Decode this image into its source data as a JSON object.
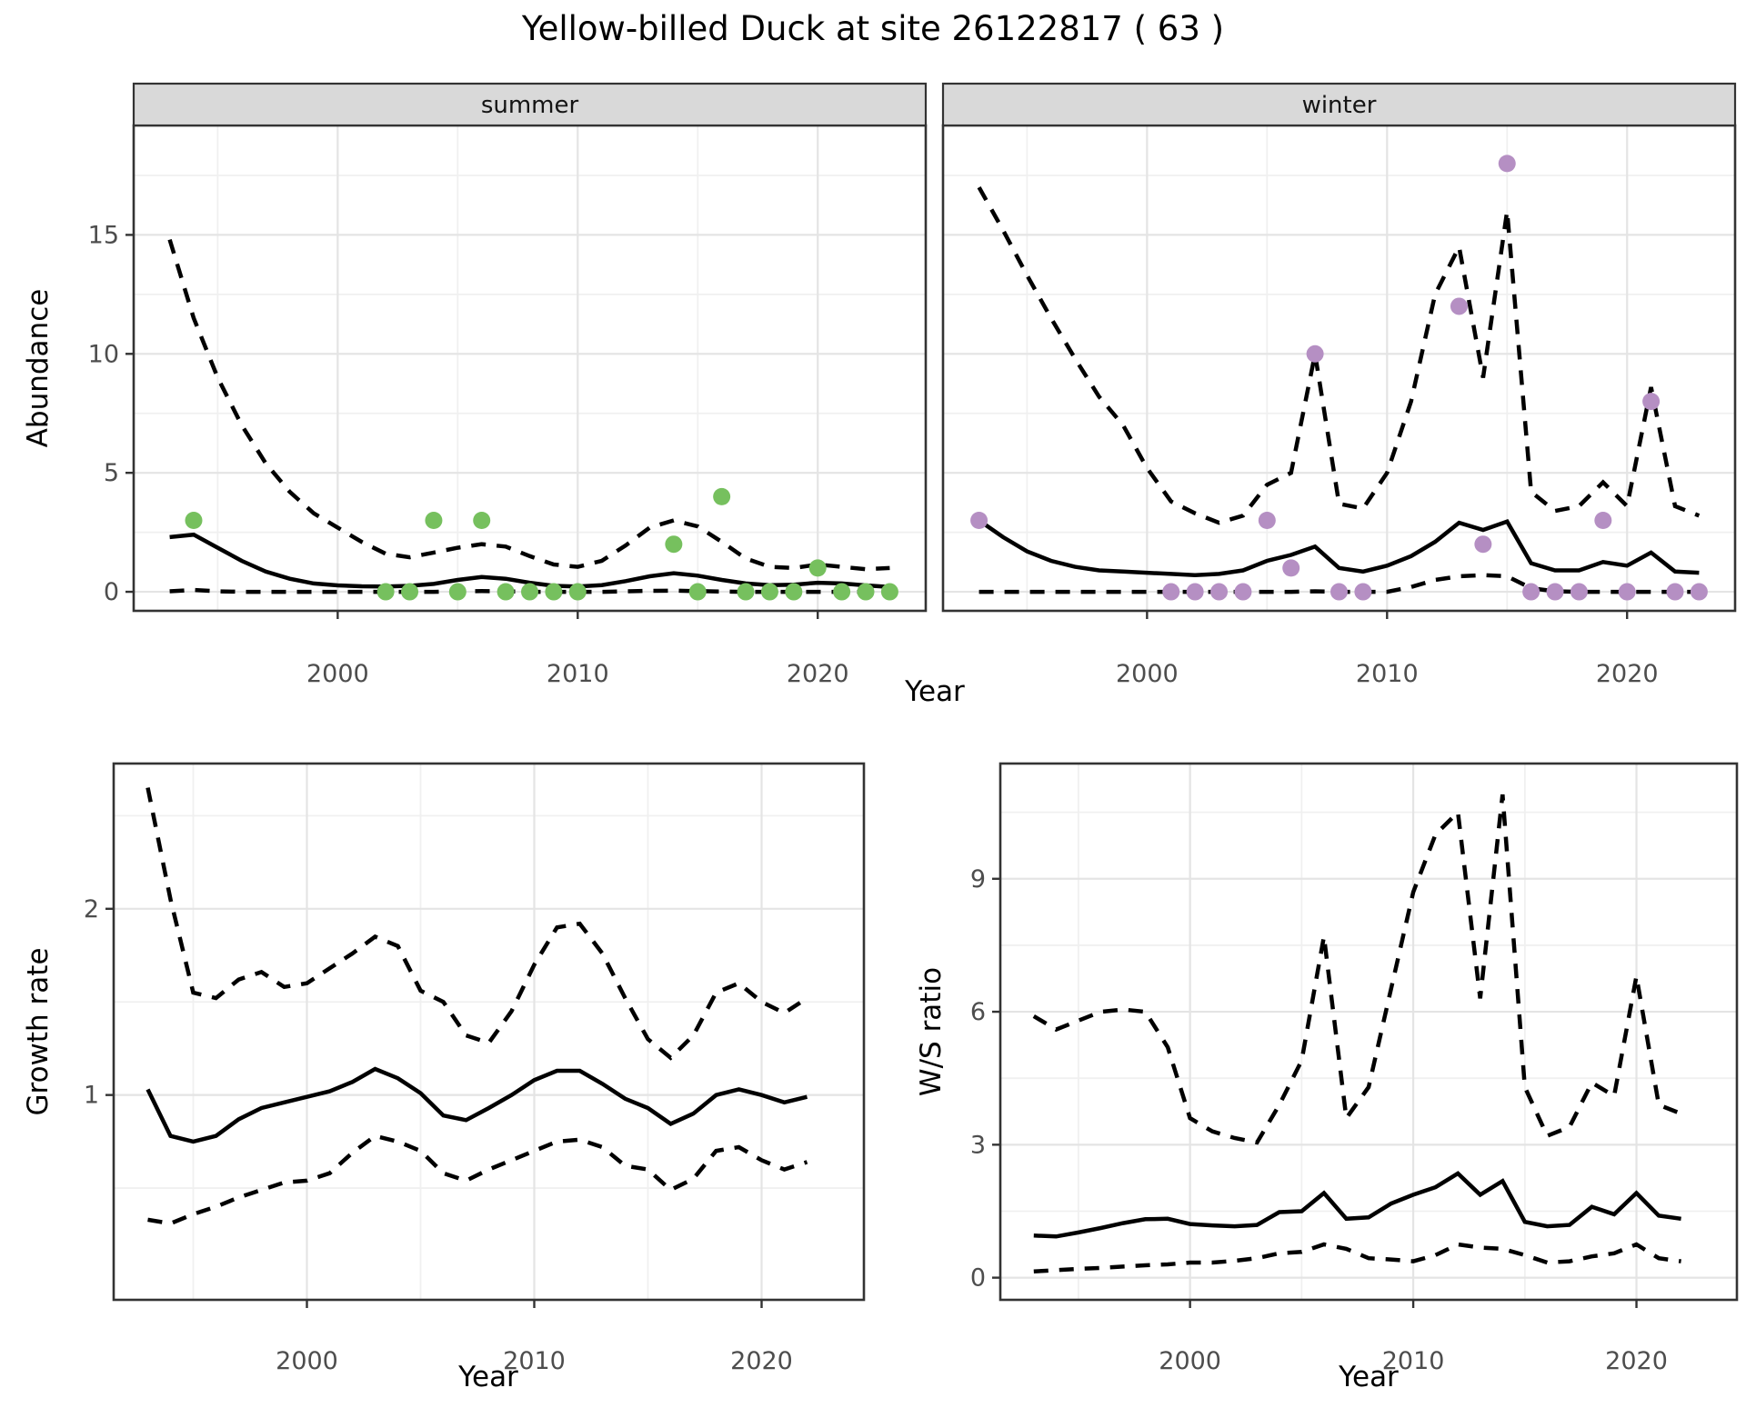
{
  "title": "Yellow-billed Duck at site 26122817 ( 63 )",
  "axes": {
    "x_label": "Year",
    "abundance_label": "Abundance",
    "growth_label": "Growth rate",
    "ws_label": "W/S ratio"
  },
  "facets": {
    "summer": "summer",
    "winter": "winter"
  },
  "colors": {
    "summer_point": "#76c05e",
    "winter_point": "#b58fc3",
    "line": "#000000",
    "strip_bg": "#d9d9d9",
    "strip_border": "#333333",
    "panel_border": "#333333",
    "grid_major": "#e4e4e4",
    "grid_minor": "#f0f0f0",
    "tick_text": "#4d4d4d",
    "tick_mark": "#333333"
  },
  "chart_data": [
    {
      "id": "abundance-summer",
      "type": "line",
      "facet_label": "summer",
      "xlabel": "Year",
      "ylabel": "Abundance",
      "xlim": [
        1991.5,
        2024.5
      ],
      "ylim": [
        -0.8,
        19.6
      ],
      "xticks": [
        2000,
        2010,
        2020
      ],
      "xminor": [
        1995,
        2005,
        2015
      ],
      "yticks": [
        0,
        5,
        10,
        15
      ],
      "yminor": [
        2.5,
        7.5,
        12.5,
        17.5
      ],
      "show_y_labels": true,
      "legend_position": "none",
      "grid": true,
      "years": [
        1993,
        1994,
        1995,
        1996,
        1997,
        1998,
        1999,
        2000,
        2001,
        2002,
        2003,
        2004,
        2005,
        2006,
        2007,
        2008,
        2009,
        2010,
        2011,
        2012,
        2013,
        2014,
        2015,
        2016,
        2017,
        2018,
        2019,
        2020,
        2021,
        2022,
        2023
      ],
      "series": [
        {
          "name": "mean",
          "style": "solid",
          "values": [
            2.3,
            2.4,
            1.85,
            1.3,
            0.85,
            0.55,
            0.35,
            0.27,
            0.23,
            0.22,
            0.25,
            0.33,
            0.5,
            0.62,
            0.55,
            0.38,
            0.25,
            0.22,
            0.28,
            0.45,
            0.65,
            0.78,
            0.68,
            0.5,
            0.35,
            0.28,
            0.3,
            0.38,
            0.35,
            0.27,
            0.2
          ]
        },
        {
          "name": "upper_ci",
          "style": "dashed",
          "values": [
            14.8,
            11.5,
            9.0,
            7.0,
            5.4,
            4.2,
            3.3,
            2.7,
            2.1,
            1.6,
            1.45,
            1.65,
            1.85,
            2.0,
            1.9,
            1.5,
            1.15,
            1.05,
            1.3,
            1.95,
            2.7,
            3.0,
            2.75,
            2.1,
            1.4,
            1.05,
            1.0,
            1.15,
            1.05,
            0.95,
            1.0
          ]
        },
        {
          "name": "lower_ci",
          "style": "dashed",
          "values": [
            0.02,
            0.08,
            0.02,
            0,
            0,
            0,
            0,
            0,
            0,
            0,
            0,
            0,
            0.02,
            0.03,
            0.02,
            0,
            0,
            0,
            0,
            0.02,
            0.04,
            0.05,
            0.03,
            0.01,
            0,
            0,
            0,
            0,
            0,
            0,
            0
          ]
        }
      ],
      "points": {
        "color_key": "summer_point",
        "data": [
          [
            1994,
            3
          ],
          [
            2002,
            0
          ],
          [
            2003,
            0
          ],
          [
            2004,
            3
          ],
          [
            2005,
            0
          ],
          [
            2006,
            3
          ],
          [
            2007,
            0
          ],
          [
            2008,
            0
          ],
          [
            2009,
            0
          ],
          [
            2010,
            0
          ],
          [
            2014,
            2
          ],
          [
            2015,
            0
          ],
          [
            2016,
            4
          ],
          [
            2017,
            0
          ],
          [
            2018,
            0
          ],
          [
            2019,
            0
          ],
          [
            2020,
            1
          ],
          [
            2021,
            0
          ],
          [
            2022,
            0
          ],
          [
            2023,
            0
          ]
        ]
      }
    },
    {
      "id": "abundance-winter",
      "type": "line",
      "facet_label": "winter",
      "xlabel": "Year",
      "ylabel": "Abundance",
      "xlim": [
        1991.5,
        2024.5
      ],
      "ylim": [
        -0.8,
        19.6
      ],
      "xticks": [
        2000,
        2010,
        2020
      ],
      "xminor": [
        1995,
        2005,
        2015
      ],
      "yticks": [
        0,
        5,
        10,
        15
      ],
      "yminor": [
        2.5,
        7.5,
        12.5,
        17.5
      ],
      "show_y_labels": false,
      "legend_position": "none",
      "grid": true,
      "years": [
        1993,
        1994,
        1995,
        1996,
        1997,
        1998,
        1999,
        2000,
        2001,
        2002,
        2003,
        2004,
        2005,
        2006,
        2007,
        2008,
        2009,
        2010,
        2011,
        2012,
        2013,
        2014,
        2015,
        2016,
        2017,
        2018,
        2019,
        2020,
        2021,
        2022,
        2023
      ],
      "series": [
        {
          "name": "mean",
          "style": "solid",
          "values": [
            3.0,
            2.3,
            1.7,
            1.3,
            1.05,
            0.9,
            0.85,
            0.8,
            0.75,
            0.7,
            0.75,
            0.9,
            1.3,
            1.55,
            1.9,
            1.0,
            0.85,
            1.1,
            1.5,
            2.1,
            2.9,
            2.6,
            2.95,
            1.2,
            0.9,
            0.9,
            1.25,
            1.1,
            1.65,
            0.85,
            0.8
          ]
        },
        {
          "name": "upper_ci",
          "style": "dashed",
          "values": [
            17.0,
            15.2,
            13.3,
            11.5,
            9.8,
            8.2,
            7.0,
            5.2,
            3.8,
            3.3,
            2.9,
            3.2,
            4.5,
            5.0,
            10.0,
            3.7,
            3.5,
            5.0,
            8.0,
            12.5,
            14.5,
            9.0,
            16.0,
            4.2,
            3.4,
            3.6,
            4.6,
            3.6,
            8.6,
            3.6,
            3.2
          ]
        },
        {
          "name": "lower_ci",
          "style": "dashed",
          "values": [
            0,
            0,
            0,
            0,
            0,
            0,
            0,
            0,
            0,
            0,
            0,
            0,
            0,
            0,
            0.02,
            0,
            0,
            0,
            0.2,
            0.5,
            0.65,
            0.7,
            0.65,
            0.15,
            0.02,
            0,
            0,
            0,
            0,
            0,
            0
          ]
        }
      ],
      "points": {
        "color_key": "winter_point",
        "data": [
          [
            1993,
            3
          ],
          [
            2001,
            0
          ],
          [
            2002,
            0
          ],
          [
            2003,
            0
          ],
          [
            2004,
            0
          ],
          [
            2005,
            3
          ],
          [
            2006,
            1
          ],
          [
            2007,
            10
          ],
          [
            2008,
            0
          ],
          [
            2009,
            0
          ],
          [
            2013,
            12
          ],
          [
            2014,
            2
          ],
          [
            2015,
            18
          ],
          [
            2016,
            0
          ],
          [
            2017,
            0
          ],
          [
            2018,
            0
          ],
          [
            2019,
            3
          ],
          [
            2020,
            0
          ],
          [
            2021,
            8
          ],
          [
            2022,
            0
          ],
          [
            2023,
            0
          ]
        ]
      }
    },
    {
      "id": "growth-rate",
      "type": "line",
      "facet_label": null,
      "xlabel": "Year",
      "ylabel": "Growth rate",
      "xlim": [
        1991.5,
        2024.5
      ],
      "ylim": [
        -0.1,
        2.78
      ],
      "xticks": [
        2000,
        2010,
        2020
      ],
      "xminor": [
        1995,
        2005,
        2015
      ],
      "yticks": [
        1,
        2
      ],
      "yminor": [
        0.5,
        1.5,
        2.5
      ],
      "show_y_labels": true,
      "legend_position": "none",
      "grid": true,
      "years": [
        1993,
        1994,
        1995,
        1996,
        1997,
        1998,
        1999,
        2000,
        2001,
        2002,
        2003,
        2004,
        2005,
        2006,
        2007,
        2008,
        2009,
        2010,
        2011,
        2012,
        2013,
        2014,
        2015,
        2016,
        2017,
        2018,
        2019,
        2020,
        2021,
        2022
      ],
      "series": [
        {
          "name": "mean",
          "style": "solid",
          "values": [
            1.03,
            0.78,
            0.75,
            0.78,
            0.87,
            0.93,
            0.96,
            0.99,
            1.02,
            1.07,
            1.14,
            1.09,
            1.01,
            0.89,
            0.865,
            0.93,
            1.0,
            1.08,
            1.13,
            1.13,
            1.06,
            0.98,
            0.93,
            0.845,
            0.9,
            1.0,
            1.03,
            1.0,
            0.96,
            0.99
          ]
        },
        {
          "name": "upper_ci",
          "style": "dashed",
          "values": [
            2.65,
            2.05,
            1.55,
            1.52,
            1.62,
            1.66,
            1.58,
            1.6,
            1.68,
            1.76,
            1.85,
            1.8,
            1.56,
            1.5,
            1.32,
            1.28,
            1.45,
            1.7,
            1.9,
            1.92,
            1.76,
            1.52,
            1.3,
            1.2,
            1.32,
            1.55,
            1.6,
            1.5,
            1.44,
            1.52
          ]
        },
        {
          "name": "lower_ci",
          "style": "dashed",
          "values": [
            0.33,
            0.31,
            0.36,
            0.4,
            0.45,
            0.49,
            0.53,
            0.54,
            0.58,
            0.69,
            0.78,
            0.75,
            0.7,
            0.58,
            0.54,
            0.6,
            0.65,
            0.7,
            0.75,
            0.76,
            0.72,
            0.62,
            0.6,
            0.49,
            0.55,
            0.7,
            0.72,
            0.65,
            0.6,
            0.64
          ]
        }
      ],
      "points": null
    },
    {
      "id": "ws-ratio",
      "type": "line",
      "facet_label": null,
      "xlabel": "Year",
      "ylabel": "W/S ratio",
      "xlim": [
        1991.5,
        2024.5
      ],
      "ylim": [
        -0.5,
        11.6
      ],
      "xticks": [
        2000,
        2010,
        2020
      ],
      "xminor": [
        1995,
        2005,
        2015
      ],
      "yticks": [
        0,
        3,
        6,
        9
      ],
      "yminor": [
        1.5,
        4.5,
        7.5,
        10.5
      ],
      "show_y_labels": true,
      "legend_position": "none",
      "grid": true,
      "years": [
        1993,
        1994,
        1995,
        1996,
        1997,
        1998,
        1999,
        2000,
        2001,
        2002,
        2003,
        2004,
        2005,
        2006,
        2007,
        2008,
        2009,
        2010,
        2011,
        2012,
        2013,
        2014,
        2015,
        2016,
        2017,
        2018,
        2019,
        2020,
        2021,
        2022
      ],
      "series": [
        {
          "name": "mean",
          "style": "solid",
          "values": [
            0.95,
            0.93,
            1.02,
            1.12,
            1.23,
            1.32,
            1.33,
            1.21,
            1.18,
            1.16,
            1.19,
            1.48,
            1.5,
            1.91,
            1.33,
            1.36,
            1.67,
            1.87,
            2.04,
            2.35,
            1.87,
            2.18,
            1.26,
            1.16,
            1.19,
            1.6,
            1.43,
            1.91,
            1.4,
            1.33
          ]
        },
        {
          "name": "upper_ci",
          "style": "dashed",
          "values": [
            5.9,
            5.6,
            5.8,
            6.0,
            6.05,
            6.0,
            5.2,
            3.6,
            3.3,
            3.15,
            3.05,
            3.9,
            4.9,
            7.7,
            3.6,
            4.3,
            6.5,
            8.7,
            10.0,
            10.5,
            6.3,
            10.9,
            4.3,
            3.2,
            3.4,
            4.4,
            4.1,
            6.8,
            3.9,
            3.7
          ]
        },
        {
          "name": "lower_ci",
          "style": "dashed",
          "values": [
            0.14,
            0.17,
            0.2,
            0.22,
            0.25,
            0.28,
            0.3,
            0.34,
            0.34,
            0.38,
            0.44,
            0.55,
            0.58,
            0.75,
            0.65,
            0.44,
            0.41,
            0.37,
            0.51,
            0.75,
            0.68,
            0.65,
            0.51,
            0.34,
            0.37,
            0.48,
            0.55,
            0.75,
            0.44,
            0.37
          ]
        }
      ],
      "points": null
    }
  ]
}
